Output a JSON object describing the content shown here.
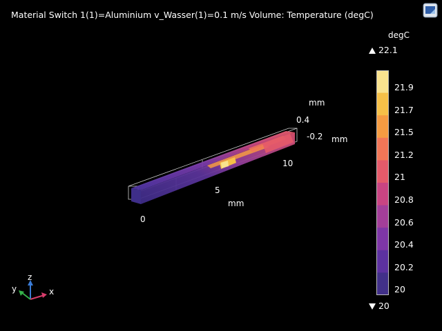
{
  "plot": {
    "title": "Material Switch 1(1)=Aluminium v_Wasser(1)=0.1 m/s   Volume: Temperature (degC)"
  },
  "colorbar": {
    "unit": "degC",
    "max_label": "22.1",
    "min_label": "20",
    "ticks": [
      "21.9",
      "21.7",
      "21.5",
      "21.2",
      "21",
      "20.8",
      "20.6",
      "20.4",
      "20.2",
      "20"
    ],
    "colors": [
      "#f9e28e",
      "#f6c048",
      "#f59b42",
      "#f17657",
      "#e45a6a",
      "#c94482",
      "#a33e99",
      "#7e36a6",
      "#5c31a0",
      "#413089"
    ]
  },
  "axes": {
    "x_ticks": [
      "0",
      "5",
      "10"
    ],
    "x_unit": "mm",
    "y_ticks": [
      "0.4",
      "-0.2"
    ],
    "y_unit": "mm",
    "z_unit": "mm"
  },
  "triad": {
    "x": "x",
    "y": "y",
    "z": "z"
  },
  "icons": {
    "corner": "window-toggle-icon",
    "max": "triangle-up-icon",
    "min": "triangle-down-icon"
  }
}
